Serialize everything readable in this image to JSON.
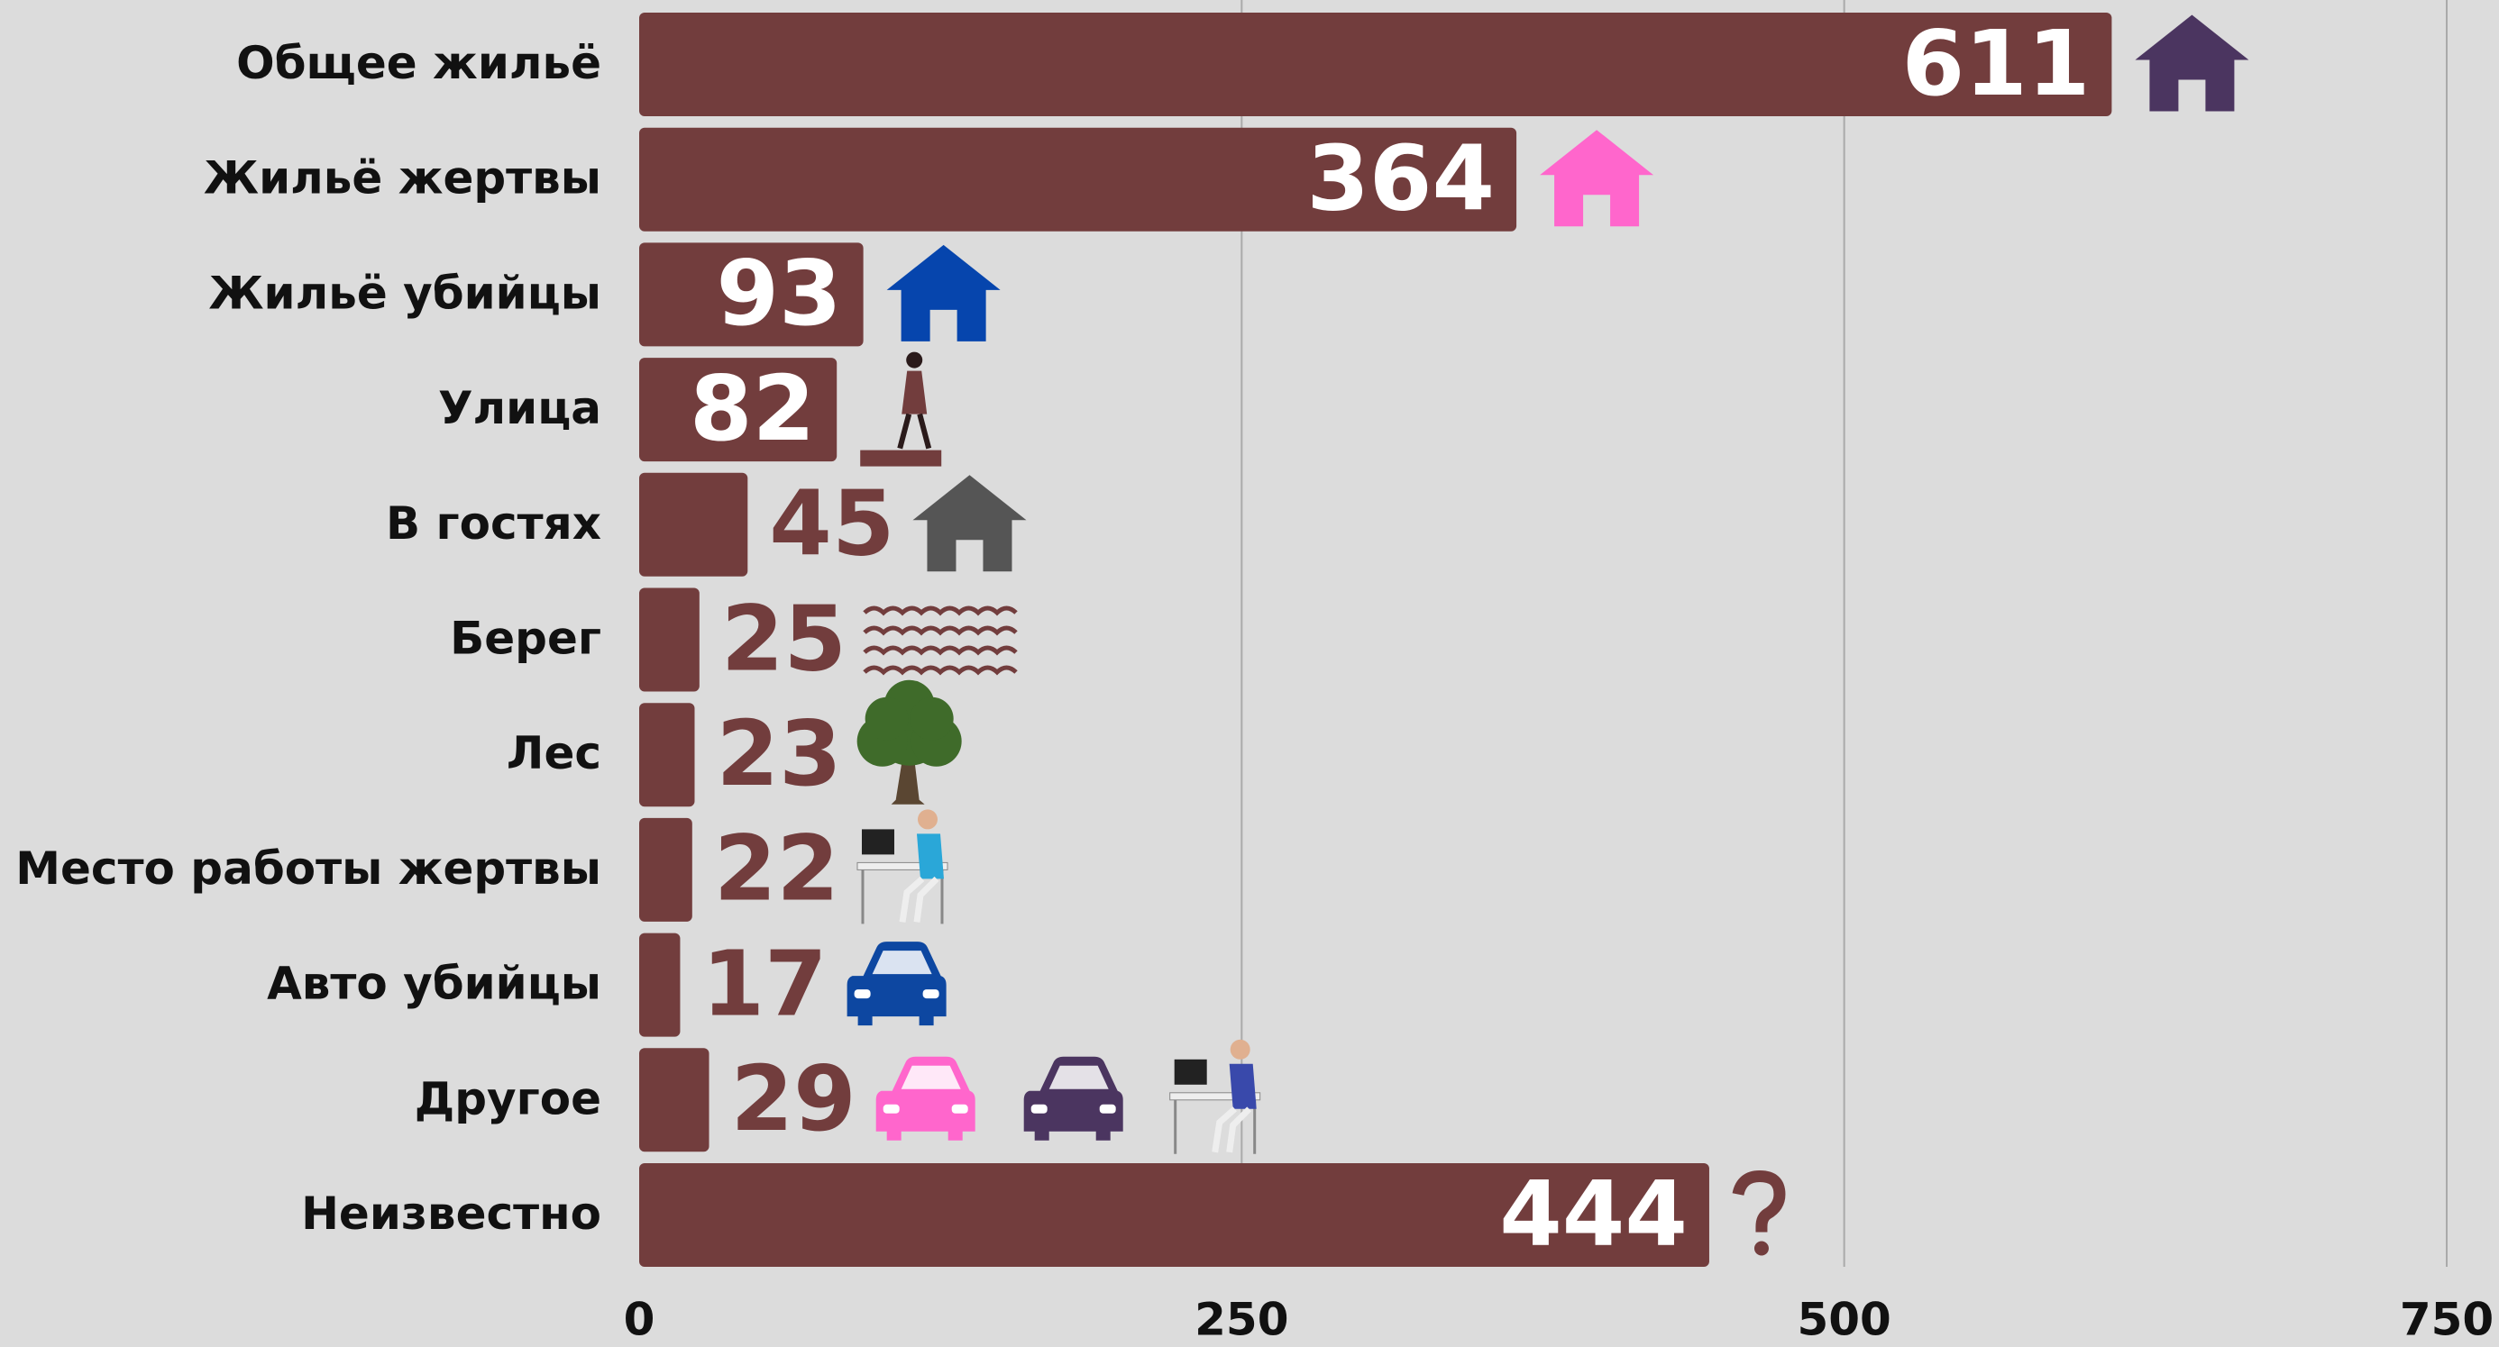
{
  "chart_data": {
    "type": "bar",
    "orientation": "horizontal",
    "categories": [
      "Общее жильё",
      "Жильё жертвы",
      "Жильё убийцы",
      "Улица",
      "В гостях",
      "Берег",
      "Лес",
      "Место работы жертвы",
      "Авто убийцы",
      "Другое",
      "Неизвестно"
    ],
    "values": [
      611,
      364,
      93,
      82,
      45,
      25,
      23,
      22,
      17,
      29,
      444
    ],
    "color": "#723d3d",
    "xlim": [
      0,
      750
    ],
    "xticks": [
      0,
      250,
      500,
      750
    ],
    "grid": true
  }
}
